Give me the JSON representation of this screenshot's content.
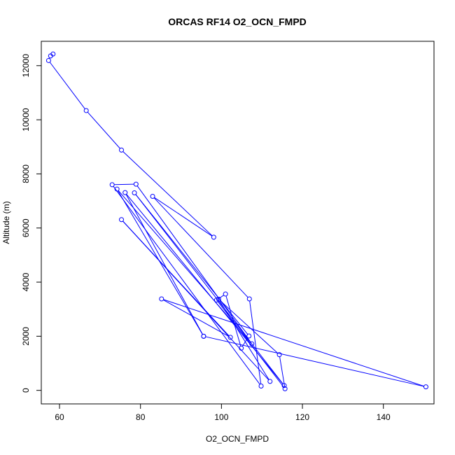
{
  "chart_data": {
    "type": "line",
    "title": "ORCAS RF14 O2_OCN_FMPD",
    "xlabel": "O2_OCN_FMPD",
    "ylabel": "Altitude (m)",
    "xlim": [
      55.5,
      152.5
    ],
    "ylim": [
      -500,
      12900
    ],
    "xticks": [
      60,
      80,
      100,
      120,
      140
    ],
    "yticks": [
      0,
      2000,
      4000,
      6000,
      8000,
      10000,
      12000
    ],
    "grid": false,
    "marker": "open-circle",
    "line_color": "#0000ff",
    "series": [
      {
        "points": [
          {
            "x": 58.4,
            "y": 12430
          },
          {
            "x": 57.8,
            "y": 12360
          },
          {
            "x": 57.3,
            "y": 12190
          },
          {
            "x": 66.6,
            "y": 10340
          },
          {
            "x": 75.3,
            "y": 8880
          },
          {
            "x": 98.1,
            "y": 5660
          },
          {
            "x": 83.0,
            "y": 7170
          },
          {
            "x": 106.9,
            "y": 3380
          },
          {
            "x": 109.8,
            "y": 160
          },
          {
            "x": 73.0,
            "y": 7600
          },
          {
            "x": 78.9,
            "y": 7620
          },
          {
            "x": 107.5,
            "y": 1720
          },
          {
            "x": 74.2,
            "y": 7440
          },
          {
            "x": 95.6,
            "y": 2000
          },
          {
            "x": 76.2,
            "y": 7310
          },
          {
            "x": 115.5,
            "y": 180
          },
          {
            "x": 78.5,
            "y": 7300
          },
          {
            "x": 106.8,
            "y": 2010
          },
          {
            "x": 104.9,
            "y": 1560
          },
          {
            "x": 101.0,
            "y": 3560
          },
          {
            "x": 98.8,
            "y": 3340
          },
          {
            "x": 115.7,
            "y": 60
          },
          {
            "x": 114.3,
            "y": 1320
          },
          {
            "x": 99.3,
            "y": 3370
          },
          {
            "x": 112.0,
            "y": 330
          },
          {
            "x": 75.3,
            "y": 6310
          },
          {
            "x": 102.2,
            "y": 1960
          },
          {
            "x": 85.2,
            "y": 3380
          },
          {
            "x": 150.5,
            "y": 130
          },
          {
            "x": 95.6,
            "y": 2000
          }
        ]
      }
    ]
  }
}
